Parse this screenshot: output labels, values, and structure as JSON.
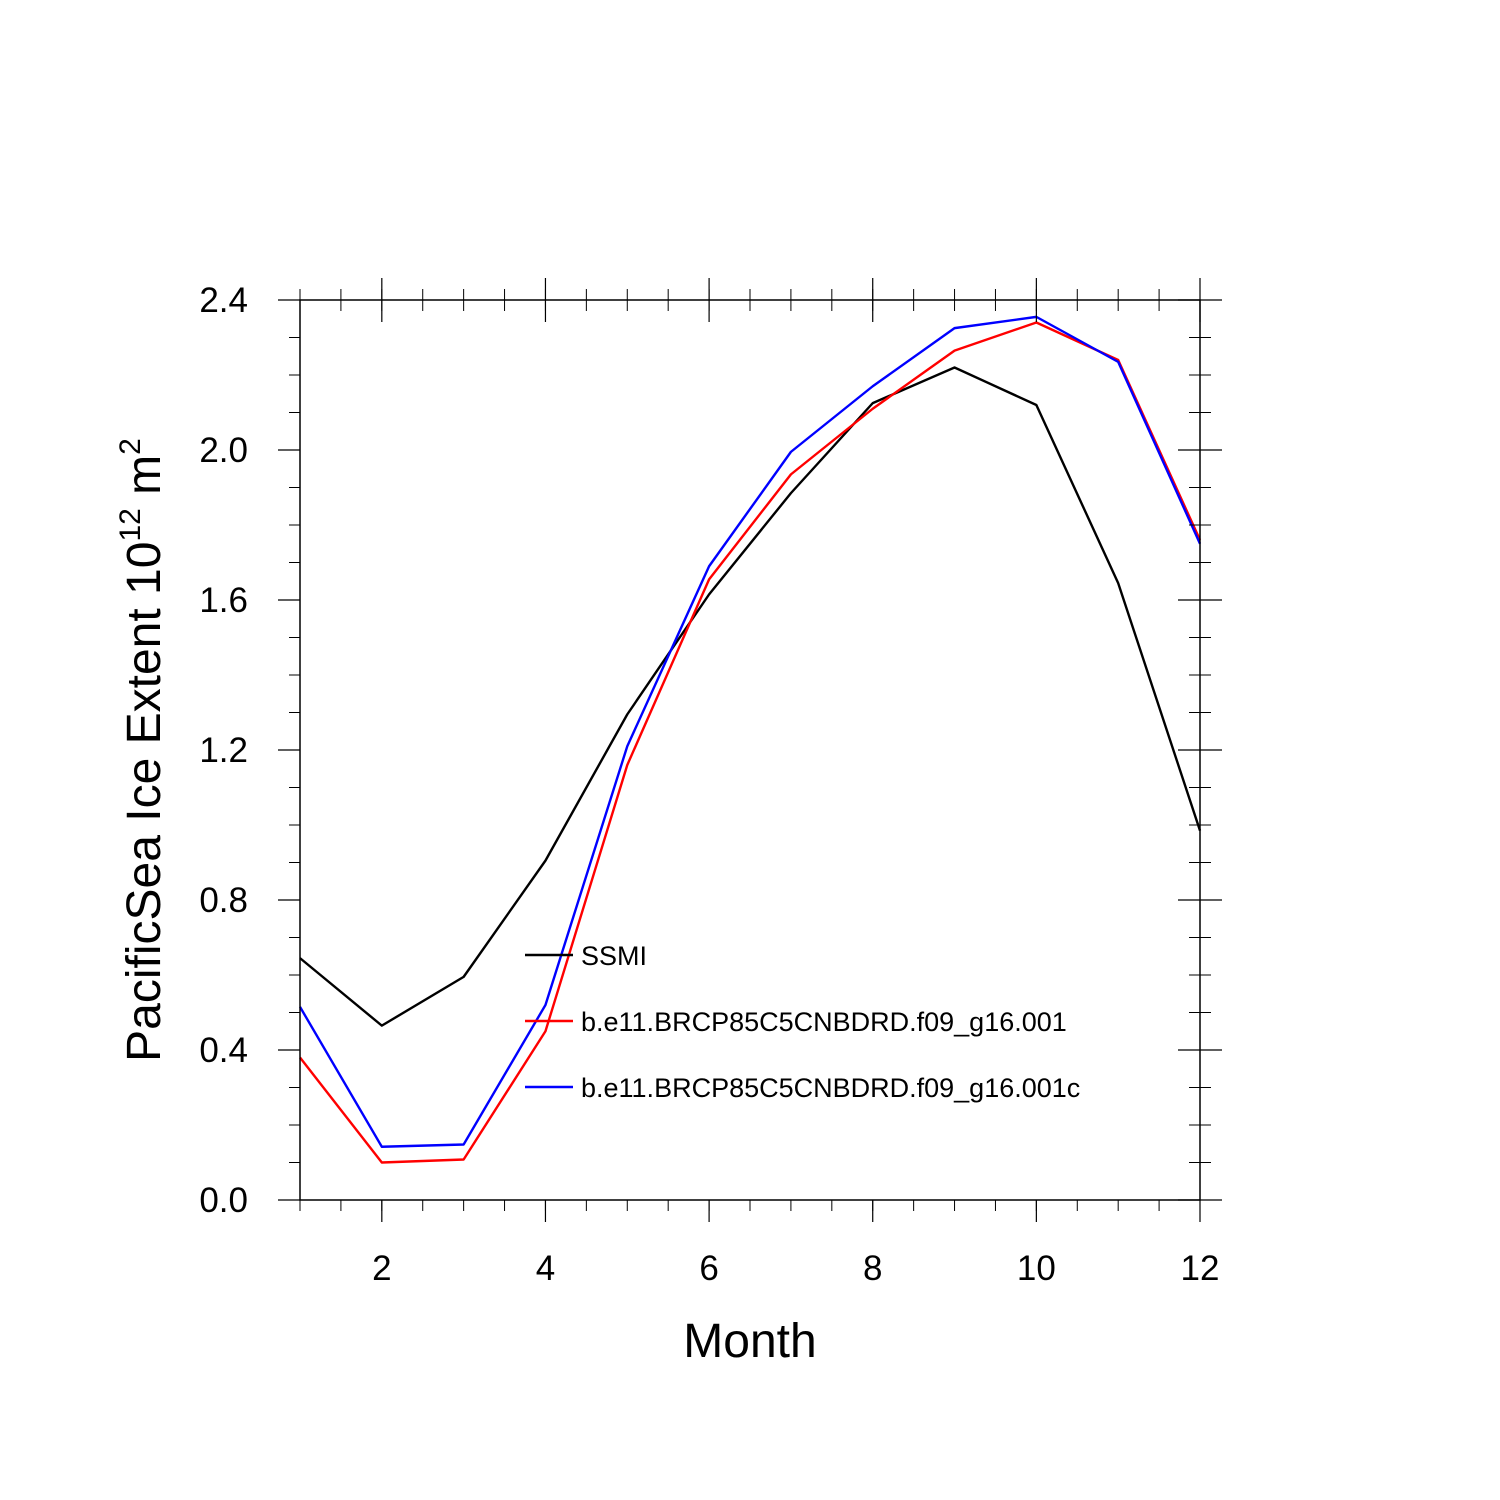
{
  "chart_data": {
    "type": "line",
    "title": "",
    "xlabel": "Month",
    "ylabel_main": "PacificSea Ice Extent 10",
    "ylabel_exp": "12",
    "ylabel_unit": " m",
    "ylabel_unit_exp": "2",
    "xlim": [
      1,
      12
    ],
    "ylim": [
      0.0,
      2.4
    ],
    "x_ticks": [
      2,
      4,
      6,
      8,
      10,
      12
    ],
    "x_tick_labels": [
      "2",
      "4",
      "6",
      "8",
      "10",
      "12"
    ],
    "y_ticks": [
      0.0,
      0.4,
      0.8,
      1.2,
      1.6,
      2.0,
      2.4
    ],
    "y_tick_labels": [
      "0.0",
      "0.4",
      "0.8",
      "1.2",
      "1.6",
      "2.0",
      "2.4"
    ],
    "x": [
      1,
      2,
      3,
      4,
      5,
      6,
      7,
      8,
      9,
      10,
      11,
      12
    ],
    "series": [
      {
        "name": "SSMI",
        "color": "#000000",
        "values": [
          0.645,
          0.465,
          0.595,
          0.905,
          1.295,
          1.615,
          1.885,
          2.125,
          2.22,
          2.12,
          1.645,
          0.985
        ]
      },
      {
        "name": "b.e11.BRCP85C5CNBDRD.f09_g16.001",
        "color": "#ff0000",
        "values": [
          0.38,
          0.1,
          0.108,
          0.45,
          1.16,
          1.655,
          1.935,
          2.11,
          2.265,
          2.34,
          2.24,
          1.76
        ]
      },
      {
        "name": "b.e11.BRCP85C5CNBDRD.f09_g16.001c",
        "color": "#0000ff",
        "values": [
          0.515,
          0.142,
          0.148,
          0.52,
          1.21,
          1.69,
          1.995,
          2.17,
          2.325,
          2.355,
          2.235,
          1.75
        ]
      }
    ],
    "legend_placement": "center-bottom inside plot",
    "grid": false
  }
}
